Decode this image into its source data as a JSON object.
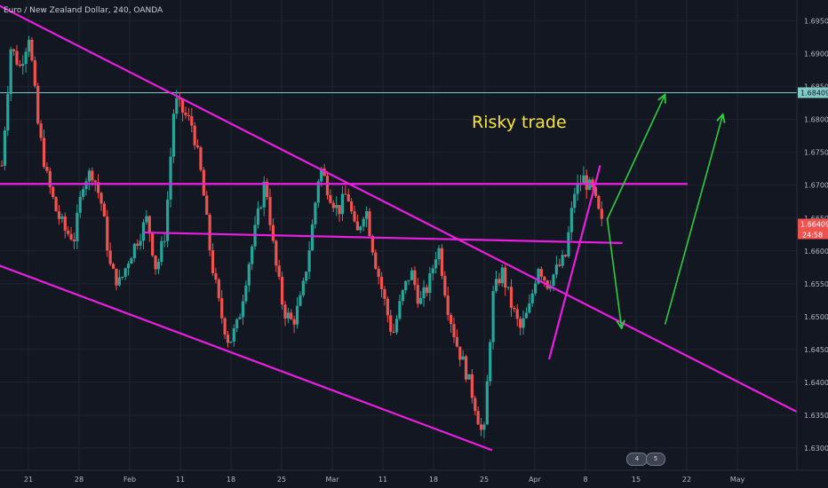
{
  "header": {
    "title": "Euro / New Zealand Dollar, 240, OANDA"
  },
  "annotation": {
    "text": "Risky trade",
    "color": "#f5e53b"
  },
  "colors": {
    "background": "#131722",
    "up": "#26a69a",
    "down": "#ef5350",
    "trendline": "#e91ee0",
    "arrow": "#2ecc40",
    "hline": "#80cbc4",
    "price_tag": "#ef5350"
  },
  "events": [
    {
      "label": "4"
    },
    {
      "label": "5"
    }
  ],
  "chart_data": {
    "type": "candlestick",
    "title": "Euro / New Zealand Dollar, 240, OANDA",
    "y_ticks": [
      "1.69500",
      "1.69000",
      "1.68500",
      "1.68000",
      "1.67500",
      "1.67000",
      "1.66500",
      "1.66000",
      "1.65500",
      "1.65000",
      "1.64500",
      "1.64000",
      "1.63500",
      "1.63000"
    ],
    "x_ticks": [
      "21",
      "28",
      "Feb",
      "11",
      "18",
      "25",
      "Mar",
      "11",
      "18",
      "25",
      "Apr",
      "8",
      "15",
      "22",
      "May"
    ],
    "ylim": [
      1.6266,
      1.6982
    ],
    "current_price": "1.66409",
    "countdown": "24:58",
    "horizontal_line": {
      "label": "1.68409",
      "value": 1.68409
    },
    "close_path": [
      1.673,
      1.691,
      1.688,
      1.693,
      1.679,
      1.671,
      1.666,
      1.663,
      1.662,
      1.671,
      1.672,
      1.667,
      1.657,
      1.655,
      1.659,
      1.662,
      1.665,
      1.657,
      1.663,
      1.683,
      1.681,
      1.679,
      1.671,
      1.659,
      1.651,
      1.646,
      1.649,
      1.657,
      1.664,
      1.671,
      1.659,
      1.651,
      1.649,
      1.653,
      1.662,
      1.673,
      1.669,
      1.666,
      1.669,
      1.662,
      1.667,
      1.659,
      1.653,
      1.647,
      1.653,
      1.657,
      1.652,
      1.655,
      1.661,
      1.652,
      1.646,
      1.642,
      1.637,
      1.631,
      1.653,
      1.657,
      1.652,
      1.648,
      1.651,
      1.658,
      1.655,
      1.657,
      1.659,
      1.669,
      1.671,
      1.669,
      1.664
    ],
    "candle_count": 200,
    "trendlines": [
      {
        "p1": [
          "Jan 14",
          1.699
        ],
        "p2": [
          "May 9",
          1.6345
        ]
      },
      {
        "p1": [
          "Jan 14",
          1.659
        ],
        "p2": [
          "Mar 26",
          1.6297
        ]
      },
      {
        "p1": [
          "Feb 6",
          1.6628
        ],
        "p2": [
          "Apr 13",
          1.6612
        ]
      },
      {
        "p1": [
          "Jan 14",
          1.6702
        ],
        "p2": [
          "Apr 22",
          1.6702
        ]
      },
      {
        "p1": [
          "Apr 3",
          1.6436
        ],
        "p2": [
          "Apr 10",
          1.6729
        ]
      }
    ],
    "projection_arrows": [
      {
        "from": [
          "Apr 11",
          1.6648
        ],
        "to": [
          "Apr 19",
          1.6838
        ]
      },
      {
        "from": [
          "Apr 11",
          1.665
        ],
        "to": [
          "Apr 13",
          1.6482
        ]
      },
      {
        "from": [
          "Apr 19",
          1.6488
        ],
        "to": [
          "Apr 27",
          1.6808
        ]
      }
    ]
  }
}
